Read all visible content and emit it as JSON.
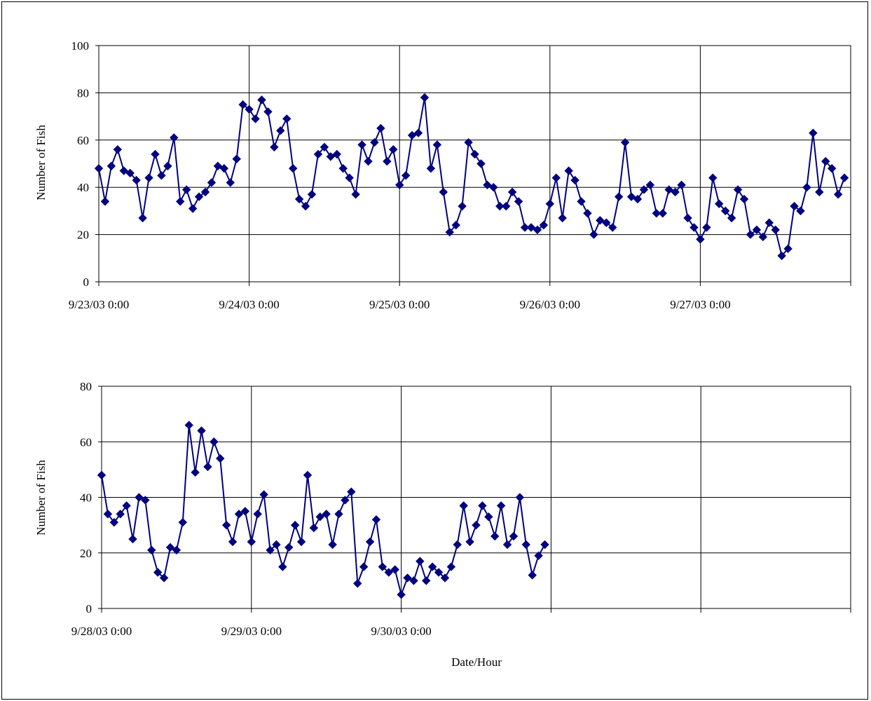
{
  "chart_data": [
    {
      "type": "line",
      "marker": "diamond",
      "series_color": "#000080",
      "ylabel": "Number of Fish",
      "ylim": [
        0,
        100
      ],
      "yticks": [
        0,
        20,
        40,
        60,
        80,
        100
      ],
      "xlim": [
        "9/23/03 0:00",
        "9/28/03 0:00"
      ],
      "xtick_labels": [
        "9/23/03 0:00",
        "9/24/03 0:00",
        "9/25/03 0:00",
        "9/26/03 0:00",
        "9/27/03 0:00"
      ],
      "grid": true,
      "hourly_start": "9/23/03 0:00",
      "values": [
        48,
        34,
        49,
        56,
        47,
        46,
        43,
        27,
        44,
        54,
        45,
        49,
        61,
        34,
        39,
        31,
        36,
        38,
        42,
        49,
        48,
        42,
        52,
        75,
        73,
        69,
        77,
        72,
        57,
        64,
        69,
        48,
        35,
        32,
        37,
        54,
        57,
        53,
        54,
        48,
        44,
        37,
        58,
        51,
        59,
        65,
        51,
        56,
        41,
        45,
        62,
        63,
        78,
        48,
        58,
        38,
        21,
        24,
        32,
        59,
        54,
        50,
        41,
        40,
        32,
        32,
        38,
        34,
        23,
        23,
        22,
        24,
        33,
        44,
        27,
        47,
        43,
        34,
        29,
        20,
        26,
        25,
        23,
        36,
        59,
        36,
        35,
        39,
        41,
        29,
        29,
        39,
        38,
        41,
        27,
        23,
        18,
        23,
        44,
        33,
        30,
        27,
        39,
        35,
        20,
        22,
        19,
        25,
        22,
        11,
        14,
        32,
        30,
        40,
        63,
        38,
        51,
        48,
        37,
        44
      ]
    },
    {
      "type": "line",
      "marker": "diamond",
      "series_color": "#000080",
      "ylabel": "Number of Fish",
      "xlabel": "Date/Hour",
      "ylim": [
        0,
        80
      ],
      "yticks": [
        0,
        20,
        40,
        60,
        80
      ],
      "xlim": [
        "9/28/03 0:00",
        "10/3/03 0:00"
      ],
      "xtick_labels": [
        "9/28/03 0:00",
        "9/29/03 0:00",
        "9/30/03 0:00"
      ],
      "grid": true,
      "hourly_start": "9/28/03 0:00",
      "values": [
        48,
        34,
        31,
        34,
        37,
        25,
        40,
        39,
        21,
        13,
        11,
        22,
        21,
        31,
        66,
        49,
        64,
        51,
        60,
        54,
        30,
        24,
        34,
        35,
        24,
        34,
        41,
        21,
        23,
        15,
        22,
        30,
        24,
        48,
        29,
        33,
        34,
        23,
        34,
        39,
        42,
        9,
        15,
        24,
        32,
        15,
        13,
        14,
        5,
        11,
        10,
        17,
        10,
        15,
        13,
        11,
        15,
        23,
        37,
        24,
        30,
        37,
        33,
        26,
        37,
        23,
        26,
        40,
        23,
        12,
        19,
        23
      ]
    }
  ]
}
